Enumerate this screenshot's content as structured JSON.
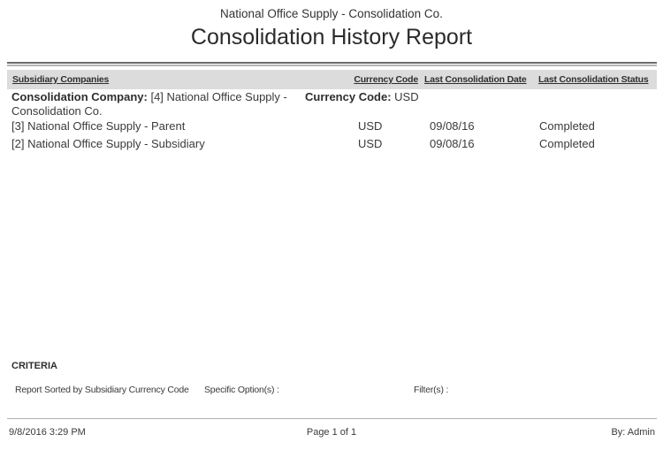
{
  "header": {
    "company": "National Office Supply - Consolidation Co.",
    "report_title": "Consolidation History Report"
  },
  "table": {
    "columns": {
      "subsidiary": "Subsidiary Companies",
      "currency": "Currency Code",
      "last_date": "Last Consolidation Date",
      "last_status": "Last Consolidation Status"
    },
    "consolidation_company": {
      "label": "Consolidation Company:",
      "value": "[4] National Office Supply - Consolidation Co.",
      "currency_label": "Currency Code:",
      "currency_value": "USD"
    },
    "rows": [
      {
        "subsidiary": "[3] National Office Supply - Parent",
        "currency": "USD",
        "last_consolidation_date": "09/08/16",
        "last_consolidation_status": "Completed"
      },
      {
        "subsidiary": "[2] National Office Supply - Subsidiary",
        "currency": "USD",
        "last_consolidation_date": "09/08/16",
        "last_consolidation_status": "Completed"
      }
    ]
  },
  "criteria": {
    "heading": "CRITERIA",
    "sorted_by": "Report Sorted by Subsidiary Currency Code",
    "specific_options_label": "Specific Option(s) :",
    "filters_label": "Filter(s) :"
  },
  "footer": {
    "generated_datetime": "9/8/2016 3:29 PM",
    "page_label": "Page 1 of 1",
    "generated_by": "By: Admin"
  },
  "colors": {
    "header_bar_bg": "#dcdcdc",
    "rule_dark": "#6b6b6b",
    "rule_light": "#b5b5b5",
    "text": "#333333"
  }
}
